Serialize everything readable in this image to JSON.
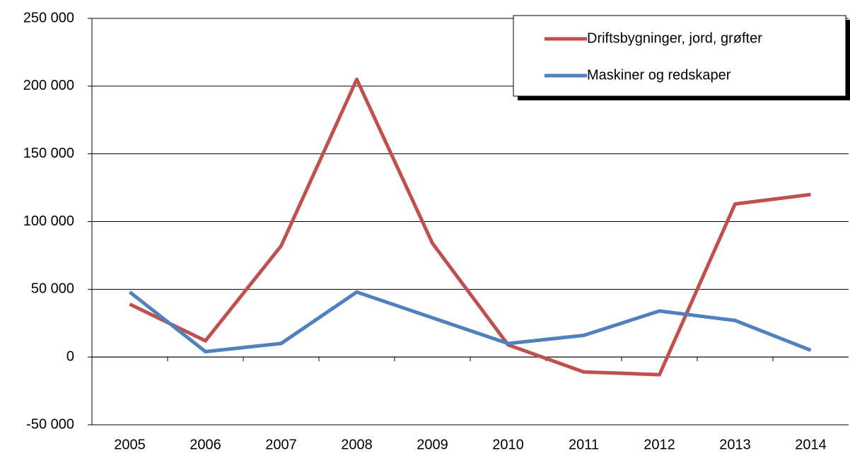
{
  "chart_data": {
    "type": "line",
    "categories": [
      "2005",
      "2006",
      "2007",
      "2008",
      "2009",
      "2010",
      "2011",
      "2012",
      "2013",
      "2014"
    ],
    "series": [
      {
        "name": "Driftsbygninger, jord, grøfter",
        "color": "#c0504d",
        "values": [
          39000,
          12000,
          82000,
          205000,
          84000,
          9000,
          -11000,
          -13000,
          113000,
          120000
        ]
      },
      {
        "name": "Maskiner og redskaper",
        "color": "#4f81bd",
        "values": [
          48000,
          4000,
          10000,
          48000,
          29000,
          10000,
          16000,
          34000,
          27000,
          5000
        ]
      }
    ],
    "ylim": [
      -50000,
      250000
    ],
    "yticks": [
      {
        "value": -50000,
        "label": "-50 000"
      },
      0,
      {
        "value": 50000,
        "label": "50 000"
      },
      {
        "value": 100000,
        "label": "100 000"
      },
      {
        "value": 150000,
        "label": "150 000"
      },
      {
        "value": 200000,
        "label": "200 000"
      },
      {
        "value": 250000,
        "label": "250 000"
      }
    ],
    "grid": true,
    "legend": "top-right"
  }
}
